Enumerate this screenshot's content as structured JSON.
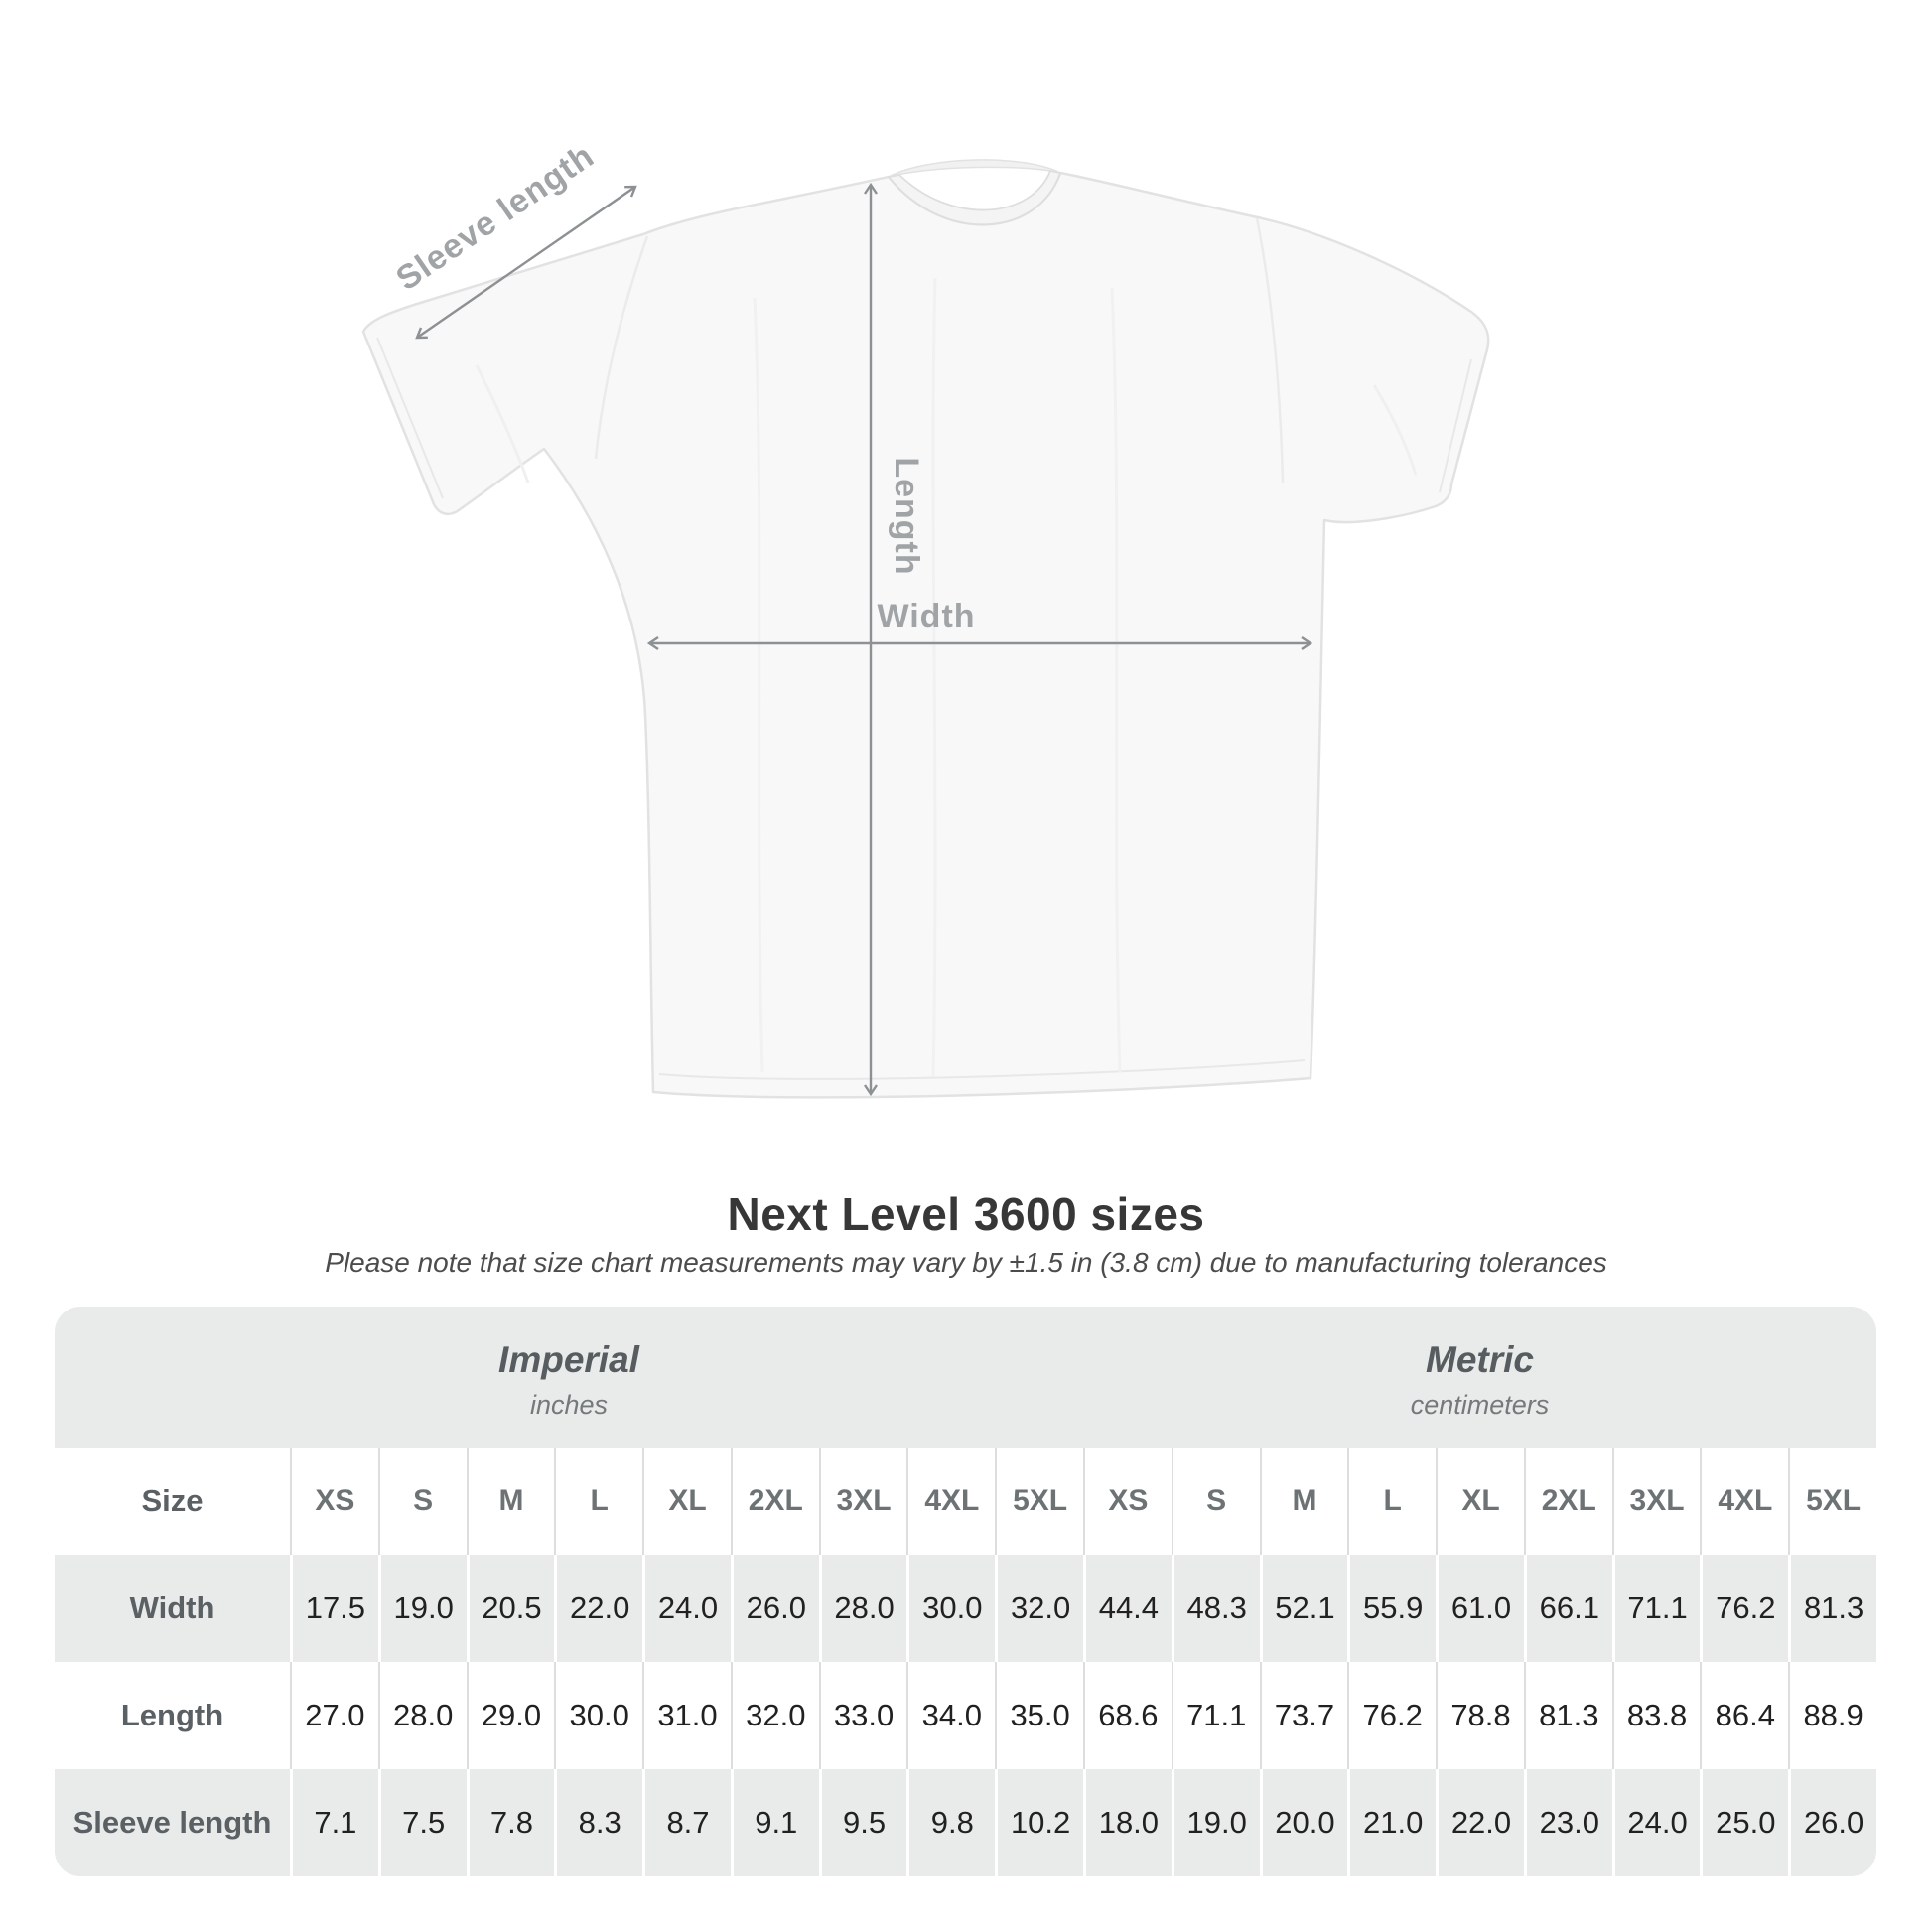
{
  "diagram": {
    "labels": {
      "sleeve_length": "Sleeve length",
      "length": "Length",
      "width": "Width"
    },
    "arrow_color": "#8d9193",
    "label_color": "#a0a4a6",
    "shirt_fill": "#f8f8f8"
  },
  "title": "Next Level 3600 sizes",
  "subtitle": "Please note that size chart measurements may vary by ±1.5 in (3.8 cm) due to manufacturing tolerances",
  "table": {
    "background": "#e9eaea",
    "unit_groups": [
      {
        "name": "Imperial",
        "unit": "inches"
      },
      {
        "name": "Metric",
        "unit": "centimeters"
      }
    ],
    "size_row_label": "Size",
    "sizes_imperial": [
      "XS",
      "S",
      "M",
      "L",
      "XL",
      "2XL",
      "3XL",
      "4XL",
      "5XL"
    ],
    "sizes_metric": [
      "XS",
      "S",
      "M",
      "L",
      "XL",
      "2XL",
      "3XL",
      "4XL",
      "5XL"
    ],
    "rows": [
      {
        "label": "Width",
        "imperial": [
          "17.5",
          "19.0",
          "20.5",
          "22.0",
          "24.0",
          "26.0",
          "28.0",
          "30.0",
          "32.0"
        ],
        "metric": [
          "44.4",
          "48.3",
          "52.1",
          "55.9",
          "61.0",
          "66.1",
          "71.1",
          "76.2",
          "81.3"
        ]
      },
      {
        "label": "Length",
        "imperial": [
          "27.0",
          "28.0",
          "29.0",
          "30.0",
          "31.0",
          "32.0",
          "33.0",
          "34.0",
          "35.0"
        ],
        "metric": [
          "68.6",
          "71.1",
          "73.7",
          "76.2",
          "78.8",
          "81.3",
          "83.8",
          "86.4",
          "88.9"
        ]
      },
      {
        "label": "Sleeve length",
        "imperial": [
          "7.1",
          "7.5",
          "7.8",
          "8.3",
          "8.7",
          "9.1",
          "9.5",
          "9.8",
          "10.2"
        ],
        "metric": [
          "18.0",
          "19.0",
          "20.0",
          "21.0",
          "22.0",
          "23.0",
          "24.0",
          "25.0",
          "26.0"
        ]
      }
    ]
  }
}
